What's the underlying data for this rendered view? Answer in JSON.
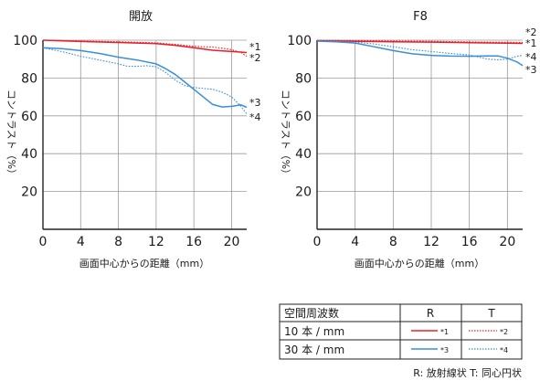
{
  "chart_data": [
    {
      "type": "line",
      "title": "開放",
      "xlabel": "画面中心からの距離（mm）",
      "ylabel": "コントラスト（%）",
      "xlim": [
        0,
        21.6
      ],
      "ylim": [
        0,
        100
      ],
      "x_ticks": [
        0,
        4,
        8,
        12,
        16,
        20
      ],
      "y_ticks": [
        20,
        40,
        60,
        80,
        100
      ],
      "grid": true,
      "series": [
        {
          "name": "*1",
          "color": "#e8202a",
          "style": "solid",
          "x": [
            0,
            4,
            8,
            12,
            14,
            16,
            18,
            20,
            21.6
          ],
          "y": [
            100,
            99.3,
            98.8,
            98.2,
            97.3,
            96,
            94.7,
            94,
            93.5
          ]
        },
        {
          "name": "*2",
          "color": "#e8202a",
          "style": "dotted",
          "x": [
            0,
            4,
            8,
            12,
            14,
            16,
            17,
            18,
            19,
            20,
            21,
            21.6
          ],
          "y": [
            100,
            99.6,
            99.2,
            98.6,
            97.8,
            96.8,
            96.5,
            96.4,
            95.8,
            95,
            93.5,
            91.5
          ]
        },
        {
          "name": "*3",
          "color": "#3b8ed6",
          "style": "solid",
          "x": [
            0,
            2,
            4,
            6,
            8,
            10,
            12,
            13,
            14,
            15,
            16,
            17,
            18,
            19,
            20,
            21,
            21.6
          ],
          "y": [
            96,
            95.5,
            94.5,
            93,
            91,
            89.5,
            87.5,
            85,
            82,
            78,
            74,
            70,
            66,
            64.7,
            65,
            65.8,
            64.5
          ]
        },
        {
          "name": "*4",
          "color": "#3b8ed6",
          "style": "dotted",
          "x": [
            0,
            2,
            4,
            6,
            8,
            9,
            10,
            11,
            12,
            13,
            14,
            15,
            16,
            17,
            18,
            19,
            20,
            21,
            21.6
          ],
          "y": [
            96,
            94,
            91.5,
            89.5,
            87.5,
            86.2,
            86.2,
            86.5,
            86,
            83,
            79,
            76,
            75,
            74.5,
            74,
            72.5,
            70,
            65,
            61
          ]
        }
      ],
      "series_labels_right": [
        "*1",
        "*2",
        "*3",
        "*4"
      ]
    },
    {
      "type": "line",
      "title": "F8",
      "xlabel": "画面中心からの距離（mm）",
      "ylabel": "コントラスト（%）",
      "xlim": [
        0,
        21.6
      ],
      "ylim": [
        0,
        100
      ],
      "x_ticks": [
        0,
        4,
        8,
        12,
        16,
        20
      ],
      "y_ticks": [
        20,
        40,
        60,
        80,
        100
      ],
      "grid": true,
      "series": [
        {
          "name": "*1",
          "color": "#e8202a",
          "style": "solid",
          "x": [
            0,
            4,
            8,
            12,
            16,
            20,
            21.6
          ],
          "y": [
            99.7,
            99.4,
            99.2,
            99,
            98.7,
            98.4,
            98.3
          ]
        },
        {
          "name": "*2",
          "color": "#e8202a",
          "style": "dotted",
          "x": [
            0,
            4,
            8,
            12,
            16,
            20,
            21.6
          ],
          "y": [
            100,
            99.8,
            99.6,
            99.4,
            99.1,
            98.9,
            98.8
          ]
        },
        {
          "name": "*3",
          "color": "#3b8ed6",
          "style": "solid",
          "x": [
            0,
            2,
            4,
            6,
            8,
            10,
            12,
            14,
            16,
            17,
            18,
            19,
            20,
            21,
            21.6
          ],
          "y": [
            99.5,
            99.2,
            98.5,
            96.5,
            94.5,
            92.8,
            92,
            91.6,
            91.5,
            91.6,
            91.7,
            91.7,
            90.5,
            88.5,
            86.5
          ]
        },
        {
          "name": "*4",
          "color": "#3b8ed6",
          "style": "dotted",
          "x": [
            0,
            2,
            4,
            6,
            8,
            10,
            12,
            14,
            16,
            17,
            18,
            19,
            20,
            21,
            21.6
          ],
          "y": [
            99.5,
            99.3,
            99,
            98,
            96.5,
            95,
            94,
            93,
            92.2,
            91,
            90,
            89.6,
            90,
            91.5,
            92
          ]
        }
      ],
      "series_labels_right": [
        "*2",
        "*1",
        "*4",
        "*3"
      ]
    }
  ],
  "legend_table": {
    "header": [
      "空間周波数",
      "R",
      "T"
    ],
    "rows": [
      {
        "label": "10 本 / mm",
        "r_marker": "*1",
        "t_marker": "*2"
      },
      {
        "label": "30 本 / mm",
        "r_marker": "*3",
        "t_marker": "*4"
      }
    ]
  },
  "footnote": "R: 放射線状  T: 同心円状",
  "colors": {
    "red": "#e8202a",
    "blue": "#3b8ed6",
    "grid": "#9a9a9a",
    "axis": "#222222"
  }
}
